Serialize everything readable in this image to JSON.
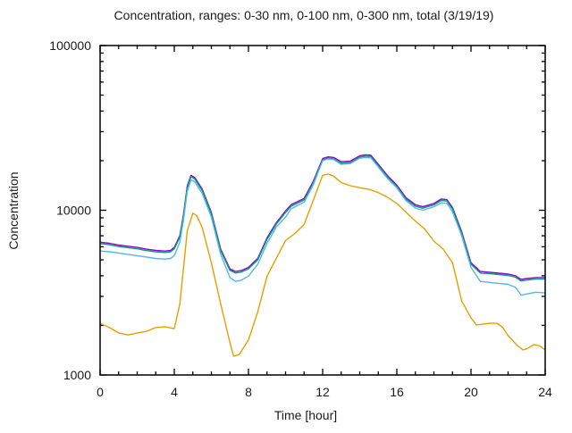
{
  "chart_data": {
    "type": "line",
    "title": "Concentration, ranges: 0-30 nm, 0-100 nm, 0-300 nm, total (3/19/19)",
    "xlabel": "Time [hour]",
    "ylabel": "Concentration",
    "xlim": [
      0,
      24
    ],
    "ylim": [
      1000,
      100000
    ],
    "y_scale": "log10",
    "grid": false,
    "legend": "none",
    "background_color": "#ffffff",
    "axis_color": "#000000",
    "x_major_ticks": [
      0,
      4,
      8,
      12,
      16,
      20,
      24
    ],
    "x_tick_labels": [
      "0",
      "4",
      "8",
      "12",
      "16",
      "20",
      "24"
    ],
    "x_minor_tick_step": 1,
    "y_major_ticks": [
      1000,
      10000,
      100000
    ],
    "y_tick_labels": [
      "1000",
      "10000",
      "100000"
    ],
    "y_minor_ticks": "log-decade-2-to-9",
    "series": [
      {
        "name": "total",
        "color": "#9400D3",
        "x": [
          0,
          0.5,
          1,
          1.5,
          2,
          2.5,
          3,
          3.5,
          3.8,
          4,
          4.3,
          4.5,
          4.7,
          4.9,
          5.1,
          5.5,
          6,
          6.5,
          7,
          7.3,
          7.6,
          8,
          8.5,
          9,
          9.5,
          10,
          10.3,
          11,
          11.5,
          12,
          12.3,
          12.6,
          13,
          13.5,
          14,
          14.3,
          14.6,
          15,
          15.5,
          16,
          16.5,
          17,
          17.4,
          18,
          18.4,
          18.7,
          19,
          19.5,
          20,
          20.5,
          21,
          21.5,
          22,
          22.4,
          22.7,
          23,
          23.5,
          24
        ],
        "y": [
          6400,
          6300,
          6150,
          6050,
          5950,
          5800,
          5700,
          5650,
          5700,
          5950,
          7000,
          9500,
          14000,
          16300,
          15800,
          13500,
          9700,
          5800,
          4400,
          4250,
          4300,
          4500,
          5100,
          6800,
          8400,
          9900,
          10800,
          11800,
          15000,
          20600,
          21100,
          20900,
          19700,
          19900,
          21400,
          21700,
          21600,
          19000,
          16200,
          14200,
          11900,
          10800,
          10500,
          11000,
          11700,
          11600,
          10400,
          7400,
          4800,
          4250,
          4200,
          4150,
          4100,
          4000,
          3800,
          3850,
          3900,
          3900
        ]
      },
      {
        "name": "0-300 nm",
        "color": "#009E73",
        "x": [
          0,
          0.5,
          1,
          1.5,
          2,
          2.5,
          3,
          3.5,
          3.8,
          4,
          4.3,
          4.5,
          4.7,
          4.9,
          5.1,
          5.5,
          6,
          6.5,
          7,
          7.3,
          7.6,
          8,
          8.5,
          9,
          9.5,
          10,
          10.3,
          11,
          11.5,
          12,
          12.3,
          12.6,
          13,
          13.5,
          14,
          14.3,
          14.6,
          15,
          15.5,
          16,
          16.5,
          17,
          17.4,
          18,
          18.4,
          18.7,
          19,
          19.5,
          20,
          20.5,
          21,
          21.5,
          22,
          22.4,
          22.7,
          23,
          23.5,
          24
        ],
        "y": [
          6280,
          6180,
          6030,
          5930,
          5830,
          5690,
          5590,
          5540,
          5590,
          5830,
          6860,
          9310,
          13720,
          16000,
          15500,
          13230,
          9510,
          5680,
          4310,
          4160,
          4210,
          4410,
          5000,
          6660,
          8230,
          9700,
          10580,
          11560,
          14700,
          20200,
          20700,
          20500,
          19300,
          19500,
          21000,
          21300,
          21200,
          18620,
          15880,
          13920,
          11660,
          10580,
          10290,
          10780,
          11470,
          11370,
          10190,
          7250,
          4700,
          4160,
          4120,
          4070,
          4020,
          3920,
          3720,
          3770,
          3820,
          3820
        ]
      },
      {
        "name": "0-100 nm",
        "color": "#56B4E9",
        "x": [
          0,
          0.5,
          1,
          1.5,
          2,
          2.5,
          3,
          3.5,
          3.8,
          4,
          4.3,
          4.5,
          4.7,
          4.9,
          5.1,
          5.5,
          6,
          6.5,
          7,
          7.3,
          7.6,
          8,
          8.5,
          9,
          9.5,
          10,
          10.3,
          11,
          11.5,
          12,
          12.3,
          12.6,
          13,
          13.5,
          14,
          14.3,
          14.6,
          15,
          15.5,
          16,
          16.5,
          17,
          17.4,
          18,
          18.4,
          18.7,
          19,
          19.5,
          20,
          20.5,
          21,
          21.5,
          22,
          22.4,
          22.7,
          23,
          23.5,
          24
        ],
        "y": [
          5650,
          5600,
          5500,
          5400,
          5300,
          5200,
          5100,
          5050,
          5100,
          5300,
          6400,
          8800,
          13000,
          15300,
          14900,
          12700,
          9100,
          5400,
          3900,
          3700,
          3760,
          3980,
          4700,
          6300,
          7900,
          9100,
          10200,
          11200,
          14300,
          20000,
          20500,
          20300,
          19000,
          19200,
          20700,
          20900,
          20800,
          18300,
          15600,
          13700,
          11400,
          10300,
          10000,
          10500,
          11100,
          11000,
          9800,
          7000,
          4500,
          3700,
          3650,
          3600,
          3550,
          3400,
          3050,
          3100,
          3180,
          3150
        ]
      },
      {
        "name": "0-30 nm",
        "color": "#E69F00",
        "x": [
          0,
          0.5,
          1,
          1.5,
          2,
          2.5,
          3,
          3.5,
          4,
          4.3,
          4.5,
          4.7,
          5,
          5.2,
          5.5,
          6,
          6.5,
          7,
          7.2,
          7.5,
          8,
          8.5,
          9,
          9.5,
          10,
          10.5,
          11,
          11.5,
          12,
          12.3,
          12.6,
          13,
          13.5,
          14,
          14.5,
          15,
          15.5,
          16,
          16.5,
          17,
          17.5,
          18,
          18.5,
          19,
          19.5,
          20,
          20.3,
          21,
          21.4,
          21.7,
          22,
          22.5,
          22.8,
          23,
          23.4,
          23.7,
          24
        ],
        "y": [
          2060,
          1940,
          1800,
          1750,
          1800,
          1840,
          1940,
          1960,
          1910,
          2700,
          4500,
          7500,
          9600,
          9300,
          7900,
          4800,
          2700,
          1570,
          1300,
          1330,
          1630,
          2420,
          3980,
          5100,
          6550,
          7230,
          8200,
          11500,
          16300,
          16600,
          16100,
          14700,
          14100,
          13700,
          13400,
          12800,
          12000,
          11000,
          9700,
          8600,
          7700,
          6500,
          5800,
          4800,
          2810,
          2220,
          2010,
          2060,
          2060,
          1950,
          1730,
          1510,
          1420,
          1440,
          1530,
          1500,
          1420
        ]
      }
    ]
  }
}
